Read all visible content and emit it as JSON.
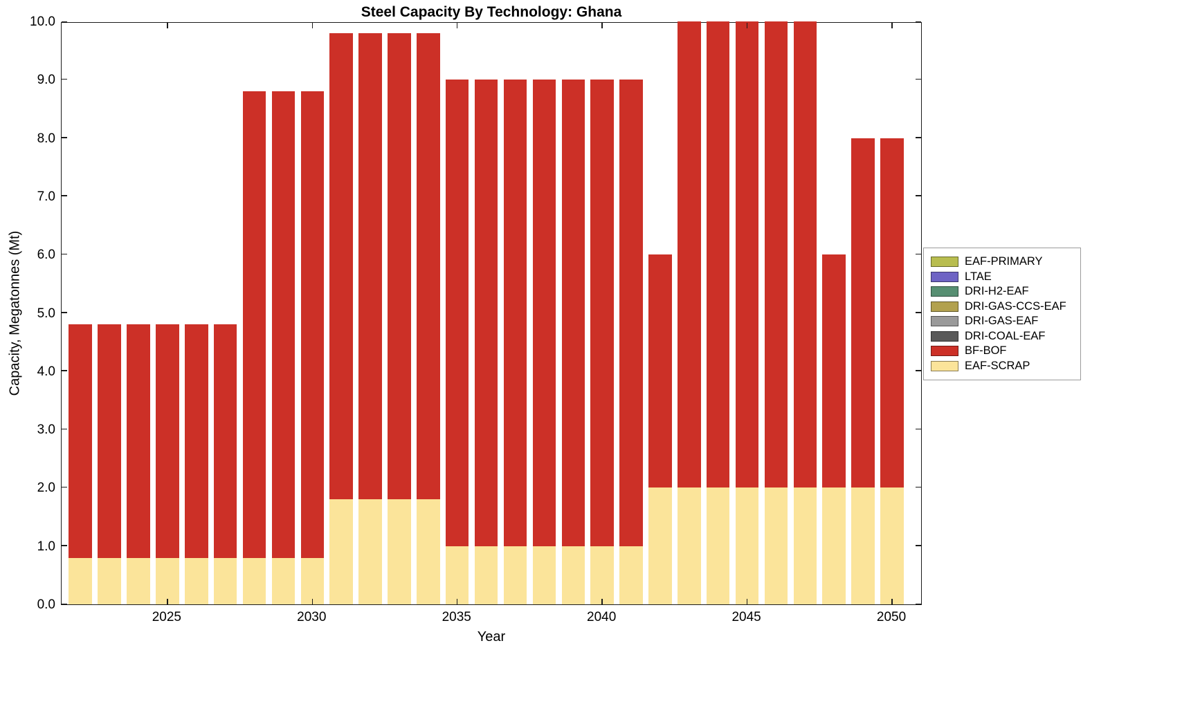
{
  "chart_data": {
    "type": "bar",
    "stacked": true,
    "title": "Steel Capacity By Technology: Ghana",
    "xlabel": "Year",
    "ylabel": "Capacity, Megatonnes (Mt)",
    "ylim": [
      0,
      10
    ],
    "ytick_step": 1,
    "ytick_labels": [
      "0.0",
      "1.0",
      "2.0",
      "3.0",
      "4.0",
      "5.0",
      "6.0",
      "7.0",
      "8.0",
      "9.0",
      "10.0"
    ],
    "xlim": [
      2021.35,
      2051.05
    ],
    "xticks": [
      2025,
      2030,
      2035,
      2040,
      2045,
      2050
    ],
    "bar_width_fraction": 0.8,
    "grid": false,
    "legend_position": "right-outside",
    "categories": [
      2022,
      2023,
      2024,
      2025,
      2026,
      2027,
      2028,
      2029,
      2030,
      2031,
      2032,
      2033,
      2034,
      2035,
      2036,
      2037,
      2038,
      2039,
      2040,
      2041,
      2042,
      2043,
      2044,
      2045,
      2046,
      2047,
      2048,
      2049,
      2050
    ],
    "series": [
      {
        "name": "EAF-SCRAP",
        "color": "#fbe49a",
        "values": [
          0.8,
          0.8,
          0.8,
          0.8,
          0.8,
          0.8,
          0.8,
          0.8,
          0.8,
          1.8,
          1.8,
          1.8,
          1.8,
          1.0,
          1.0,
          1.0,
          1.0,
          1.0,
          1.0,
          1.0,
          2.0,
          2.0,
          2.0,
          2.0,
          2.0,
          2.0,
          2.0,
          2.0,
          2.0
        ]
      },
      {
        "name": "BF-BOF",
        "color": "#cc3027",
        "values": [
          4.0,
          4.0,
          4.0,
          4.0,
          4.0,
          4.0,
          8.0,
          8.0,
          8.0,
          8.0,
          8.0,
          8.0,
          8.0,
          8.0,
          8.0,
          8.0,
          8.0,
          8.0,
          8.0,
          8.0,
          4.0,
          8.0,
          8.0,
          8.0,
          8.0,
          8.0,
          4.0,
          6.0,
          6.0
        ]
      }
    ],
    "legend": [
      {
        "label": "EAF-PRIMARY",
        "color": "#b8bd4f"
      },
      {
        "label": "LTAE",
        "color": "#6e63c4"
      },
      {
        "label": "DRI-H2-EAF",
        "color": "#578f72"
      },
      {
        "label": "DRI-GAS-CCS-EAF",
        "color": "#b2a14e"
      },
      {
        "label": "DRI-GAS-EAF",
        "color": "#9a9a9a"
      },
      {
        "label": "DRI-COAL-EAF",
        "color": "#595959"
      },
      {
        "label": "BF-BOF",
        "color": "#cc3027"
      },
      {
        "label": "EAF-SCRAP",
        "color": "#fbe49a"
      }
    ]
  }
}
